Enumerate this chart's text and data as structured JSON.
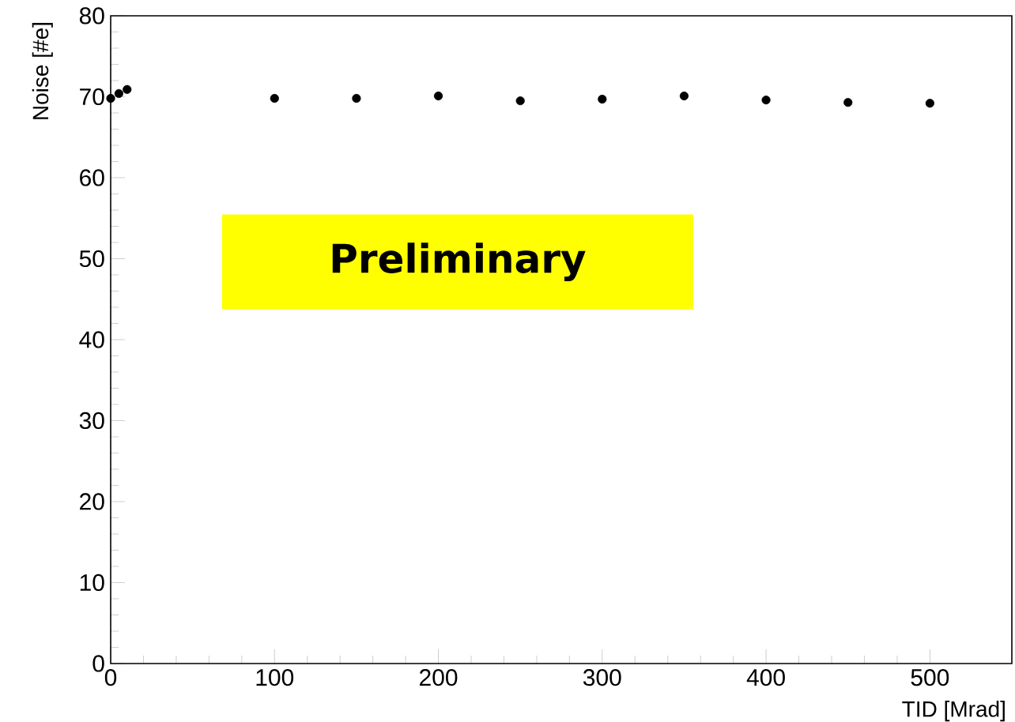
{
  "chart_data": {
    "type": "scatter",
    "xlabel": "TID [Mrad]",
    "ylabel": "Noise [#e]",
    "annotations": [
      "Preliminary"
    ],
    "x": [
      0,
      5,
      10,
      100,
      150,
      200,
      250,
      300,
      350,
      400,
      450,
      500
    ],
    "values": [
      69.8,
      70.4,
      70.9,
      69.8,
      69.8,
      70.1,
      69.5,
      69.7,
      70.1,
      69.6,
      69.3,
      69.2
    ],
    "color": "#000000",
    "xlim": [
      0,
      550
    ],
    "xticks": [
      0,
      100,
      200,
      300,
      400,
      500
    ],
    "ylim": [
      0,
      80
    ],
    "yticks": [
      0,
      10,
      20,
      30,
      40,
      50,
      60,
      70,
      80
    ]
  }
}
